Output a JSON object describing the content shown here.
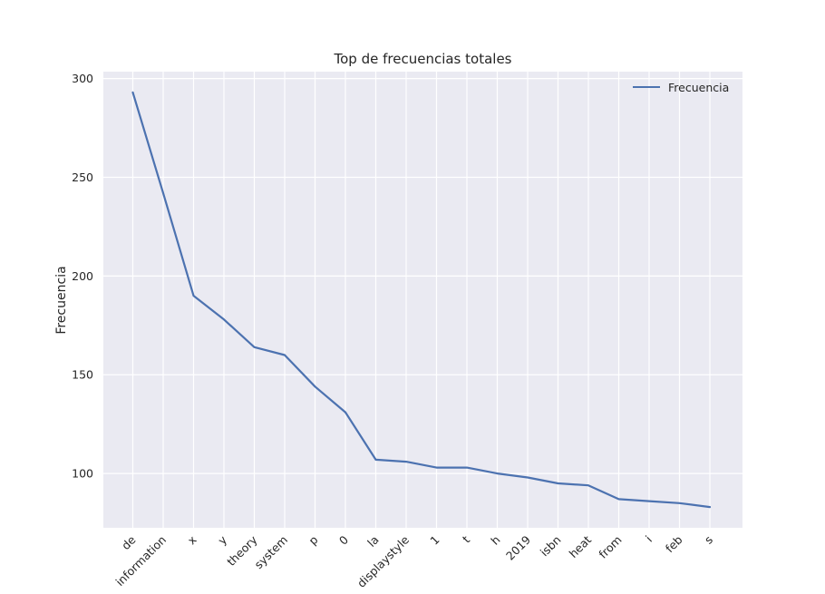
{
  "chart_data": {
    "type": "line",
    "title": "Top de frecuencias totales",
    "xlabel": "",
    "ylabel": "Frecuencia",
    "categories": [
      "de",
      "information",
      "x",
      "y",
      "theory",
      "system",
      "p",
      "0",
      "la",
      "displaystyle",
      "1",
      "t",
      "h",
      "2019",
      "isbn",
      "heat",
      "from",
      "i",
      "feb",
      "s"
    ],
    "series": [
      {
        "name": "Frecuencia",
        "values": [
          293,
          242,
          190,
          178,
          164,
          160,
          144,
          131,
          107,
          106,
          103,
          103,
          100,
          98,
          95,
          94,
          87,
          86,
          85,
          83
        ],
        "color": "#4c72b0"
      }
    ],
    "yticks": [
      100,
      150,
      200,
      250,
      300
    ],
    "ylim": [
      72.5,
      303.5
    ],
    "grid": true,
    "legend_position": "top-right",
    "background_color": "#eaeaf2",
    "grid_color": "#ffffff"
  }
}
